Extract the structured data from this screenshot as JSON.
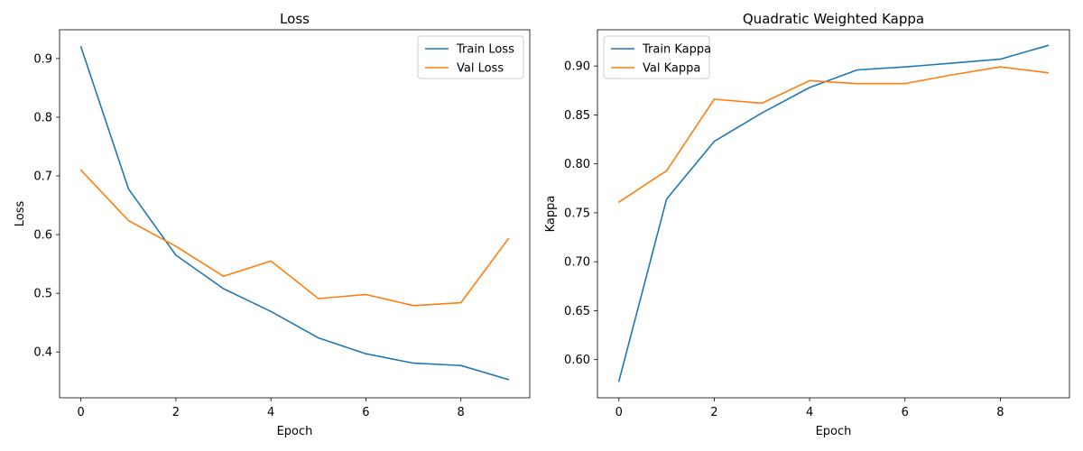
{
  "chart_data": [
    {
      "type": "line",
      "title": "Loss",
      "xlabel": "Epoch",
      "ylabel": "Loss",
      "x": [
        0,
        1,
        2,
        3,
        4,
        5,
        6,
        7,
        8,
        9
      ],
      "xlim": [
        -0.45,
        9.45
      ],
      "ylim": [
        0.322,
        0.949
      ],
      "xticks": [
        0,
        2,
        4,
        6,
        8
      ],
      "yticks": [
        0.4,
        0.5,
        0.6,
        0.7,
        0.8,
        0.9
      ],
      "ytick_format": 1,
      "grid": false,
      "legend": "top-right",
      "series": [
        {
          "name": "Train Loss",
          "color": "#1f77b4",
          "values": [
            0.92,
            0.678,
            0.565,
            0.508,
            0.469,
            0.424,
            0.397,
            0.381,
            0.377,
            0.353
          ]
        },
        {
          "name": "Val Loss",
          "color": "#ff7f0e",
          "values": [
            0.71,
            0.624,
            0.58,
            0.529,
            0.555,
            0.491,
            0.498,
            0.479,
            0.484,
            0.593
          ]
        }
      ]
    },
    {
      "type": "line",
      "title": "Quadratic Weighted Kappa",
      "xlabel": "Epoch",
      "ylabel": "Kappa",
      "x": [
        0,
        1,
        2,
        3,
        4,
        5,
        6,
        7,
        8,
        9
      ],
      "xlim": [
        -0.45,
        9.45
      ],
      "ylim": [
        0.561,
        0.937
      ],
      "xticks": [
        0,
        2,
        4,
        6,
        8
      ],
      "yticks": [
        0.6,
        0.65,
        0.7,
        0.75,
        0.8,
        0.85,
        0.9
      ],
      "ytick_format": 2,
      "grid": false,
      "legend": "top-left",
      "series": [
        {
          "name": "Train Kappa",
          "color": "#1f77b4",
          "values": [
            0.578,
            0.764,
            0.823,
            0.852,
            0.878,
            0.896,
            0.899,
            0.903,
            0.907,
            0.921
          ]
        },
        {
          "name": "Val Kappa",
          "color": "#ff7f0e",
          "values": [
            0.761,
            0.793,
            0.866,
            0.862,
            0.885,
            0.882,
            0.882,
            0.891,
            0.899,
            0.893
          ]
        }
      ]
    }
  ]
}
